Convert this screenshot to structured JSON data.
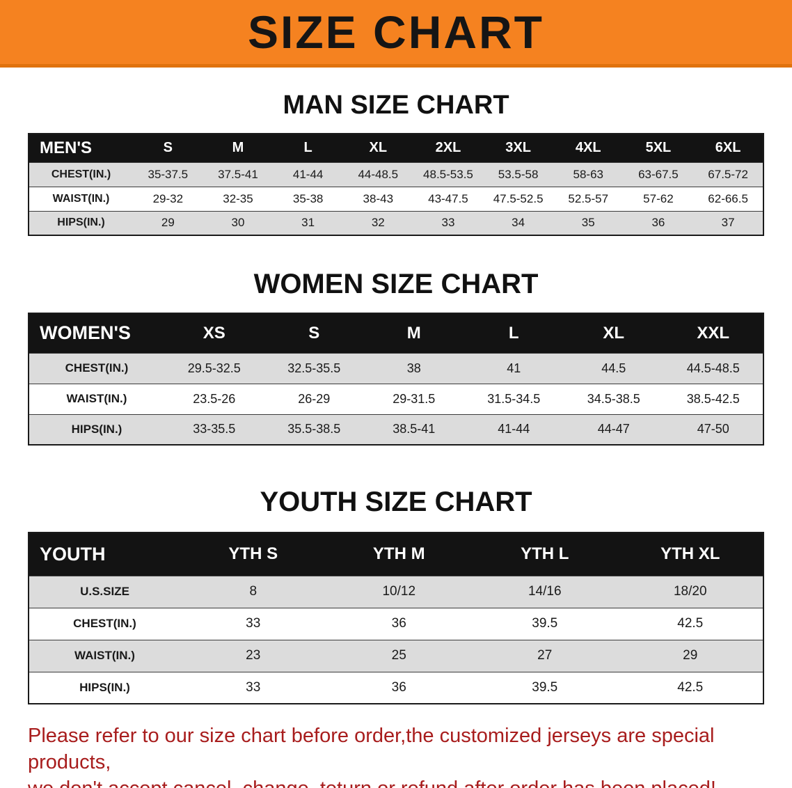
{
  "banner": {
    "title": "SIZE CHART",
    "bg_color": "#f58220"
  },
  "sections": [
    {
      "heading": "MAN SIZE CHART",
      "table": {
        "label": "MEN'S",
        "columns": [
          "S",
          "M",
          "L",
          "XL",
          "2XL",
          "3XL",
          "4XL",
          "5XL",
          "6XL"
        ],
        "rows": [
          {
            "label": "CHEST(IN.)",
            "values": [
              "35-37.5",
              "37.5-41",
              "41-44",
              "44-48.5",
              "48.5-53.5",
              "53.5-58",
              "58-63",
              "63-67.5",
              "67.5-72"
            ]
          },
          {
            "label": "WAIST(IN.)",
            "values": [
              "29-32",
              "32-35",
              "35-38",
              "38-43",
              "43-47.5",
              "47.5-52.5",
              "52.5-57",
              "57-62",
              "62-66.5"
            ]
          },
          {
            "label": "HIPS(IN.)",
            "values": [
              "29",
              "30",
              "31",
              "32",
              "33",
              "34",
              "35",
              "36",
              "37"
            ]
          }
        ]
      }
    },
    {
      "heading": "WOMEN SIZE CHART",
      "table": {
        "label": "WOMEN'S",
        "columns": [
          "XS",
          "S",
          "M",
          "L",
          "XL",
          "XXL"
        ],
        "rows": [
          {
            "label": "CHEST(IN.)",
            "values": [
              "29.5-32.5",
              "32.5-35.5",
              "38",
              "41",
              "44.5",
              "44.5-48.5"
            ]
          },
          {
            "label": "WAIST(IN.)",
            "values": [
              "23.5-26",
              "26-29",
              "29-31.5",
              "31.5-34.5",
              "34.5-38.5",
              "38.5-42.5"
            ]
          },
          {
            "label": "HIPS(IN.)",
            "values": [
              "33-35.5",
              "35.5-38.5",
              "38.5-41",
              "41-44",
              "44-47",
              "47-50"
            ]
          }
        ]
      }
    },
    {
      "heading": "YOUTH SIZE CHART",
      "table": {
        "label": "YOUTH",
        "columns": [
          "YTH S",
          "YTH M",
          "YTH L",
          "YTH XL"
        ],
        "rows": [
          {
            "label": "U.S.SIZE",
            "values": [
              "8",
              "10/12",
              "14/16",
              "18/20"
            ]
          },
          {
            "label": "CHEST(IN.)",
            "values": [
              "33",
              "36",
              "39.5",
              "42.5"
            ]
          },
          {
            "label": "WAIST(IN.)",
            "values": [
              "23",
              "25",
              "27",
              "29"
            ]
          },
          {
            "label": "HIPS(IN.)",
            "values": [
              "33",
              "36",
              "39.5",
              "42.5"
            ]
          }
        ]
      }
    }
  ],
  "footer": {
    "text_color": "#a81d1d",
    "lines": [
      "Please refer to our size chart before order,the customized jerseys are special products,",
      "we don't accept cancel, change, teturn or refund after order has been placed!"
    ]
  }
}
